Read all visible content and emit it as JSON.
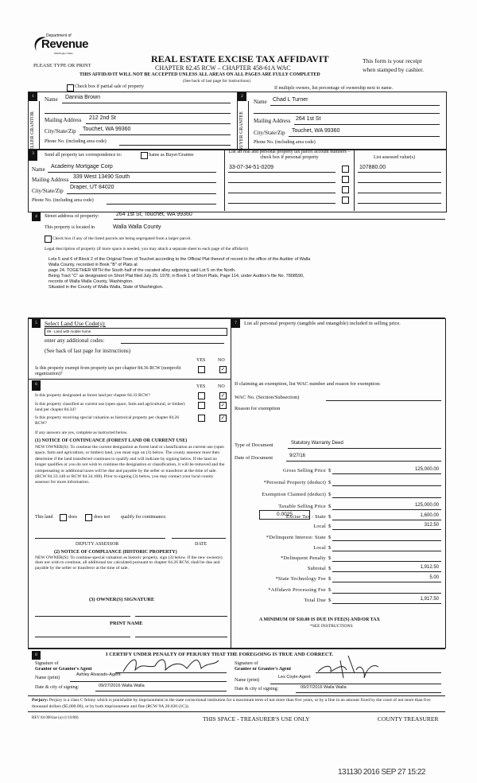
{
  "header": {
    "logo_dept": "Department of",
    "logo_name": "Revenue",
    "logo_state": "Washington State",
    "please": "PLEASE TYPE OR PRINT",
    "title": "REAL ESTATE EXCISE TAX AFFIDAVIT",
    "chapter": "CHAPTER 82.45 RCW – CHAPTER 458-61A WAC",
    "warning": "THIS AFFIDAVIT WILL NOT BE ACCEPTED UNLESS ALL AREAS ON ALL PAGES ARE FULLY COMPLETED",
    "see_back": "(See back of last page for instructions)",
    "receipt1": "This form is your receipt",
    "receipt2": "when stamped by cashier.",
    "partial_sale": "Check box if partial sale of property",
    "multiple_owners": "If multiple owners, list percentage of ownership next to name."
  },
  "seller": {
    "num": "1",
    "side": "SELLER GRANTOR",
    "name_label": "Name",
    "name": "Dannia Brown",
    "mail_label": "Mailing Address",
    "mail": "212 2nd St",
    "city_label": "City/State/Zip",
    "city": "Touchet, WA 99360",
    "phone_label": "Phone No. (including area code)"
  },
  "buyer": {
    "num": "2",
    "side": "BUYER GRANTEE",
    "name_label": "Name",
    "name": "Chad L Turner",
    "mail_label": "Mailing Address",
    "mail": "264 1st St",
    "city_label": "City/State/Zip",
    "city": "Touchet, WA 99360",
    "phone_label": "Phone No. (including area code)"
  },
  "section3": {
    "num": "3",
    "send_label": "Send all property tax correspondence to:",
    "same_label": "Same as Buyer/Grantee",
    "name_label": "Name",
    "name": "Academy Mortgage Corp",
    "mail_label": "Mailing Address",
    "mail": "339 West 13490 South",
    "city_label": "City/State/Zip",
    "city": "Draper, UT 84020",
    "phone_label": "Phone No. (including area code)",
    "parcel_header": "List all real and personal property tax parcel account numbers – check box if personal property",
    "assessed_header": "List assessed value(s)",
    "parcel": "33-07-34-51-0209",
    "assessed": "107880.00"
  },
  "section4": {
    "num": "4",
    "street_label": "Street address of property:",
    "street": "264 1st St, Touchet, WA 99360",
    "located_label": "This property is located in",
    "county": "Walla Walla County",
    "segregated": "Check box if any of the listed parcels are being segregated from a larger parcel.",
    "legal_label": "Legal description of property (if more space is needed, you may attach a separate sheet to each page of the affidavit)",
    "legal": [
      "Lots 5 and 6 of Block 2 of the Original Town of Touchet according to the Official Plat thereof of record in the office of the Auditor of Walla",
      "Walla County, recorded in Book \"B\" of Plats at",
      "page 24.  TOGETHER WITH the South half of the vacated alley adjoining said Lot 5 on the North.",
      "Being Tract \"C\" as designated on Short Plat filed July 29, 1978, in Book 1 of Short Plats, Page 114, under Auditor's file No. 7808590,",
      "records of Walla Walla County, Washington.",
      "Situated in the County of Walla Walla, State of Washington."
    ]
  },
  "section5": {
    "num": "5",
    "label": "Select Land Use Code(s):",
    "code": "09 - Land with mobile home",
    "additional": "enter any additional codes:",
    "see_back": "(See back of last page for instructions)",
    "yes": "YES",
    "no": "NO",
    "exempt_q": "Is this property exempt from property tax per chapter 84.36 RCW (nonprofit organization)?",
    "exempt_answer": "NO"
  },
  "section6": {
    "num": "6",
    "yes": "YES",
    "no": "NO",
    "questions": [
      {
        "q": "Is this property designated as forest land per chapter 84.33 RCW?",
        "answer": "NO"
      },
      {
        "q": "Is this property classified as current use (open space, farm and agricultural, or timber) land per chapter 84.34?",
        "answer": "NO"
      },
      {
        "q": "Is this property receiving special valuation as historical property per chapter 84.26 RCW?",
        "answer": "NO"
      }
    ],
    "if_yes": "If any answers are yes, complete as instructed below.",
    "notice1_title": "(1) NOTICE OF CONTINUANCE  (FOREST LAND OR CURRENT USE)",
    "notice1_text": "NEW OWNER(S): To continue the current designation as forest land or classification as current use (open space, farm and agriculture, or timber) land, you must sign on (3) below. The county assessor must then determine if the land transferred continues to qualify and will indicate by signing below. If the land no longer qualifies or you do not wish to continue the designation or classification, it will be removed and the compensating or additional taxes will be due and payable by the seller or transferor at the time of sale. (RCW 84.33.140 or RCW 84.34.108). Prior to signing (3) below, you may contact your local county assessor for more information.",
    "this_land": "This land",
    "does": "does",
    "does_not": "does not",
    "qualify": "qualify for continuance.",
    "deputy": "DEPUTY ASSESSOR",
    "date": "DATE",
    "notice2_title": "(2) NOTICE OF COMPLIANCE (HISTORIC PROPERTY)",
    "notice2_text": "NEW OWNER(S): To continue special valuation as historic property, sign (3) below. If the new owner(s) does not wish to continue, all additional tax calculated pursuant to chapter 84.26 RCW, shall be due and payable by the seller or transferor at the time of sale.",
    "owner_sig": "(3)  OWNER(S) SIGNATURE",
    "print_name": "PRINT NAME"
  },
  "section7": {
    "num": "7",
    "label": "List all  personal property (tangible and intangible) included in selling price.",
    "exemption": "If claiming an exemption, list WAC number and reason for exemption:",
    "wac": "WAC No. (Section/Subsection)",
    "reason": "Reason for exemption",
    "doc_type_label": "Type of Document",
    "doc_type": "Statutory Warranty Deed",
    "doc_date_label": "Date of Document",
    "doc_date": "9/27/16",
    "local_rate": "0.0025",
    "rows": [
      {
        "label": "Gross Selling Price",
        "value": "125,000.00"
      },
      {
        "label": "*Personal Property (deduct)",
        "value": ""
      },
      {
        "label": "Exemption Claimed (deduct)",
        "value": ""
      },
      {
        "label": "Taxable Selling Price",
        "value": "125,000.00"
      },
      {
        "label": "Excise Tax : State",
        "value": "1,600.00"
      },
      {
        "label": "Local",
        "value": "312.50"
      },
      {
        "label": "*Delinquent Interest: State",
        "value": ""
      },
      {
        "label": "Local",
        "value": ""
      },
      {
        "label": "*Delinquent Penalty",
        "value": ""
      },
      {
        "label": "Subtotal",
        "value": "1,912.50"
      },
      {
        "label": "*State Technology Fee",
        "value": "5.00"
      },
      {
        "label": "*Affidavit Processing Fee",
        "value": ""
      },
      {
        "label": "Total Due",
        "value": "1,917.50"
      }
    ],
    "currency": "$",
    "minimum": "A MINIMUM OF $10.00 IS DUE IN FEE(S) AND/OR TAX",
    "see_instr": "*SEE INSTRUCTIONS"
  },
  "section8": {
    "num": "8",
    "certify": "I CERTIFY UNDER PENALTY OF PERJURY THAT THE FOREGOING IS TRUE AND CORRECT.",
    "sig_of": "Signature of",
    "grantor_agent": "Grantor or Grantor's Agent",
    "grantee_agent": "Grantee or Grantee's Agent",
    "name_label": "Name (print)",
    "grantor_name": "Ashley Alvarado-Agent",
    "grantee_name": "Les Coyle-Agent",
    "date_label": "Date & city of signing:",
    "grantor_date": "09/27/2016  Walla Walla",
    "grantee_date": "09/27/2016  Walla Walla"
  },
  "footer": {
    "perjury_label": "Perjury:",
    "perjury_text": "Perjury is a class C felony which is punishable by imprisonment in the state correctional institution for a maximum term of not more than five years, or by a fine in an amount fixed by the court of not more than five thousand dollars ($5,000.00), or by both imprisonment and fine (RCW 9A.20.020 (1C)).",
    "rev": "REV 84 0001ae (a) (1/10/08)",
    "treasurer_space": "THIS SPACE - TREASURER'S USE ONLY",
    "county_treasurer": "COUNTY TREASURER",
    "stamp": "131130 2016 SEP 27 15:22"
  }
}
